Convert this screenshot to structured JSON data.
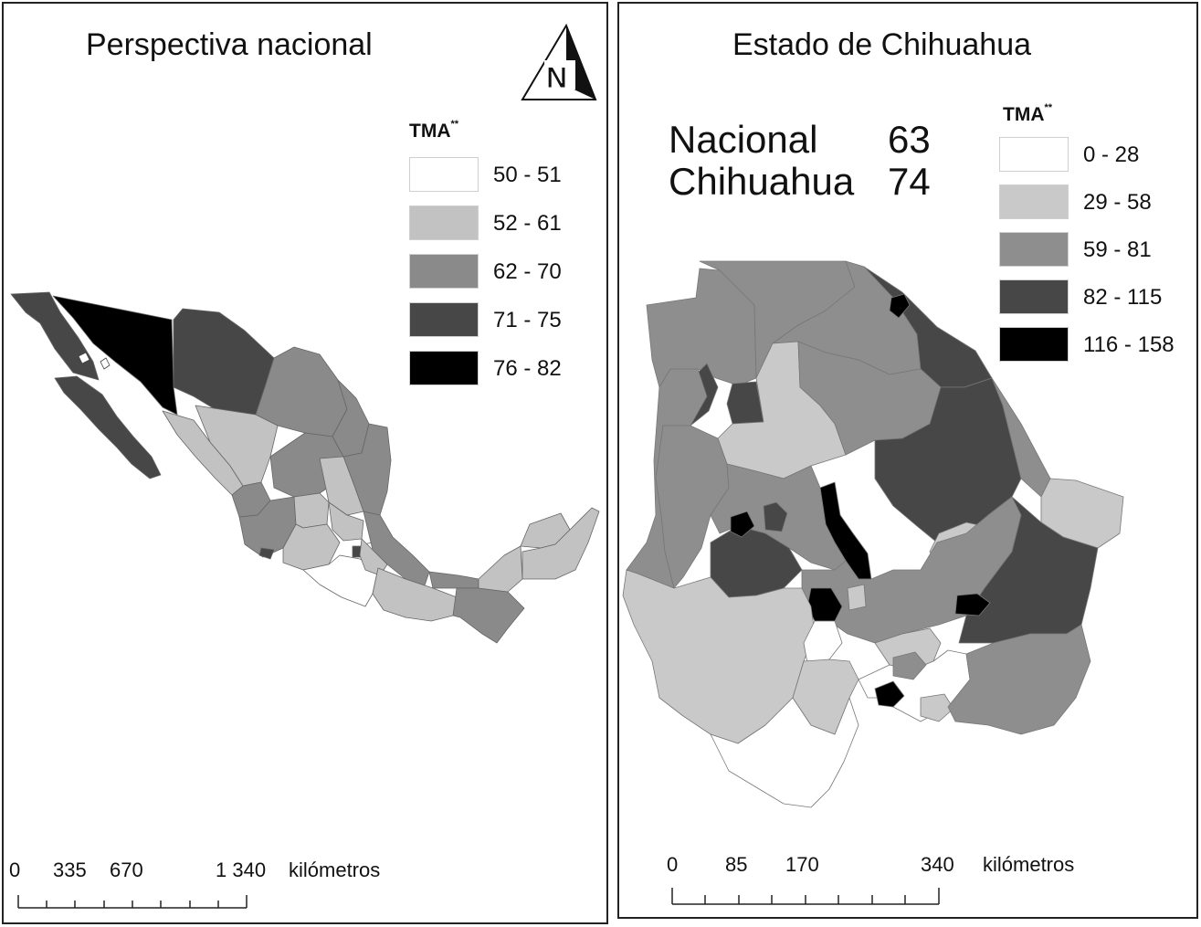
{
  "left_panel": {
    "title": "Perspectiva nacional",
    "legend": {
      "title": "TMA",
      "title_superscript": "**",
      "classes": [
        {
          "label": "50 - 51",
          "color": "#ffffff"
        },
        {
          "label": "52 - 61",
          "color": "#c2c2c2"
        },
        {
          "label": "62 - 70",
          "color": "#8a8a8a"
        },
        {
          "label": "71 - 75",
          "color": "#474747"
        },
        {
          "label": "76 - 82",
          "color": "#000000"
        }
      ]
    },
    "scale_bar": {
      "ticks": [
        "0",
        "335",
        "670",
        "1 340"
      ],
      "unit": "kilómetros"
    },
    "north_arrow": {
      "label": "N",
      "icon": "north-arrow-icon"
    }
  },
  "right_panel": {
    "title": "Estado de Chihuahua",
    "stats": [
      {
        "name": "Nacional",
        "value": "63"
      },
      {
        "name": "Chihuahua",
        "value": "74"
      }
    ],
    "legend": {
      "title": "TMA",
      "title_superscript": "**",
      "classes": [
        {
          "label": "0 - 28",
          "color": "#ffffff"
        },
        {
          "label": "29 - 58",
          "color": "#c9c9c9"
        },
        {
          "label": "59 - 81",
          "color": "#8e8e8e"
        },
        {
          "label": "82 - 115",
          "color": "#474747"
        },
        {
          "label": "116 - 158",
          "color": "#000000"
        }
      ]
    },
    "scale_bar": {
      "ticks": [
        "0",
        "85",
        "170",
        "340"
      ],
      "unit": "kilómetros"
    }
  }
}
